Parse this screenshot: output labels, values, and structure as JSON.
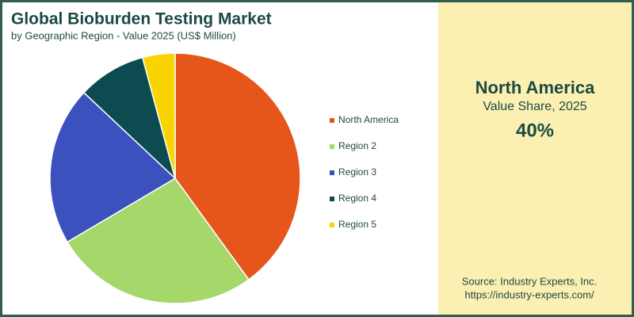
{
  "chart_data": {
    "type": "pie",
    "title": "Global Bioburden Testing Market",
    "subtitle": "by Geographic Region - Value 2025 (US$ Million)",
    "categories": [
      "North America",
      "Region 2",
      "Region 3",
      "Region 4",
      "Region 5"
    ],
    "values": [
      40,
      26.5,
      20.5,
      8.8,
      4.2
    ],
    "colors": [
      "#e6551a",
      "#a5d76b",
      "#3b52be",
      "#0c4c50",
      "#f9d400"
    ],
    "legend": "right"
  },
  "panel": {
    "region": "North America",
    "metric": "Value Share, 2025",
    "value": "40%",
    "source": "Source: Industry Experts, Inc.",
    "url": "https://industry-experts.com/"
  }
}
